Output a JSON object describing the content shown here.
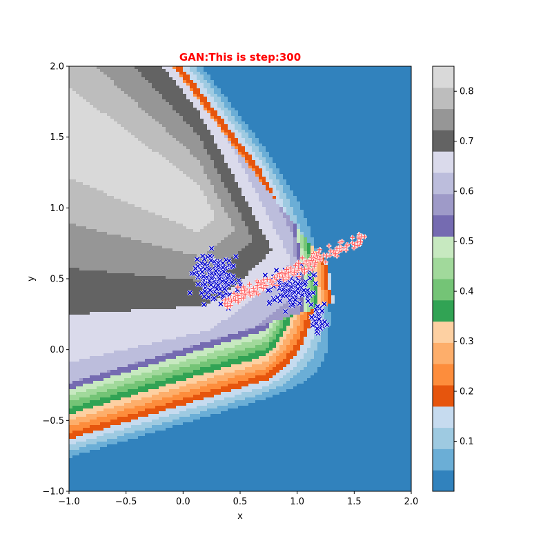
{
  "chart_data": {
    "type": "contour_scatter",
    "title": "GAN:This is step:300",
    "title_color": "#ff0000",
    "xlabel": "x",
    "ylabel": "y",
    "xlim": [
      -1.0,
      2.0
    ],
    "ylim": [
      -1.0,
      2.0
    ],
    "x_ticks": [
      "−1.0",
      "−0.5",
      "0.0",
      "0.5",
      "1.0",
      "1.5",
      "2.0"
    ],
    "x_tick_values": [
      -1.0,
      -0.5,
      0.0,
      0.5,
      1.0,
      1.5,
      2.0
    ],
    "y_ticks": [
      "−1.0",
      "−0.5",
      "0.0",
      "0.5",
      "1.0",
      "1.5",
      "2.0"
    ],
    "y_tick_values": [
      -1.0,
      -0.5,
      0.0,
      0.5,
      1.0,
      1.5,
      2.0
    ],
    "colorbar": {
      "min": 0.0,
      "max": 0.85,
      "tick_values": [
        0.1,
        0.2,
        0.3,
        0.4,
        0.5,
        0.6,
        0.7,
        0.8
      ],
      "tick_labels": [
        "0.1",
        "0.2",
        "0.3",
        "0.4",
        "0.5",
        "0.6",
        "0.7",
        "0.8"
      ],
      "colormap": "tab20c",
      "level_colors": [
        "#3182bd",
        "#6baed6",
        "#9ecae1",
        "#c6dbef",
        "#e6550d",
        "#fd8d3c",
        "#fdae6b",
        "#fdd0a2",
        "#31a354",
        "#74c476",
        "#a1d99b",
        "#c7e9c0",
        "#756bb1",
        "#9e9ac8",
        "#bcbddc",
        "#dadaeb",
        "#636363",
        "#969696",
        "#bdbdbd",
        "#d9d9d9"
      ]
    },
    "field": {
      "description_free": true,
      "apex": [
        1.3,
        0.45
      ],
      "upper_band_slope": -1.05,
      "lower_band_slope": 0.3
    },
    "series": [
      {
        "marker": "x",
        "color": "#0000cc",
        "clusters": [
          {
            "center": [
              0.28,
              0.5
            ],
            "spread": [
              0.17,
              0.14
            ],
            "count": 170
          },
          {
            "center": [
              0.95,
              0.42
            ],
            "spread": [
              0.18,
              0.12
            ],
            "count": 120
          },
          {
            "center": [
              1.2,
              0.22
            ],
            "spread": [
              0.06,
              0.1
            ],
            "count": 40
          }
        ]
      },
      {
        "marker": "+",
        "color": "#ff5a5a",
        "line": {
          "from": [
            0.38,
            0.34
          ],
          "to": [
            1.6,
            0.8
          ],
          "count": 200
        }
      }
    ]
  }
}
